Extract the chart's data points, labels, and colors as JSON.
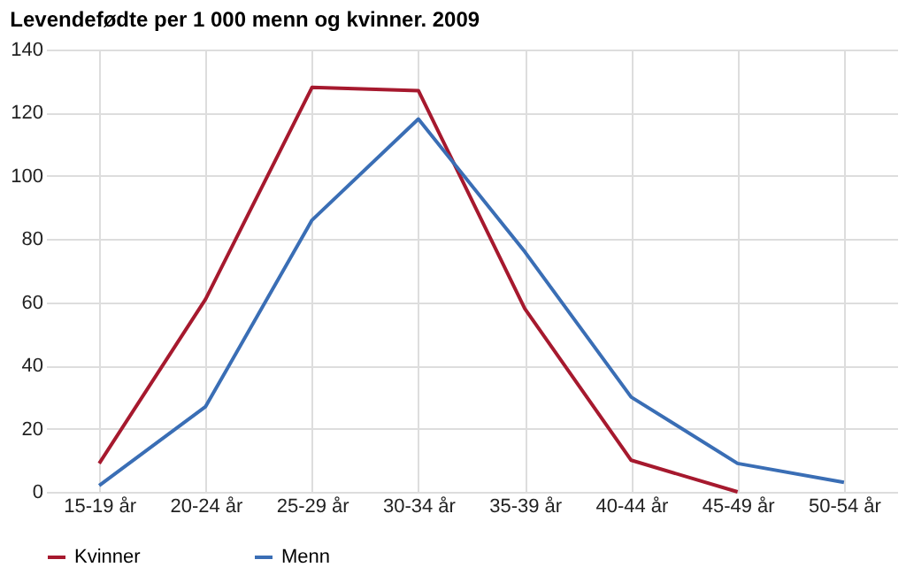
{
  "chart_data": {
    "type": "line",
    "title": "Levendefødte per 1 000 menn og kvinner. 2009",
    "categories": [
      "15-19 år",
      "20-24 år",
      "25-29 år",
      "30-34 år",
      "35-39 år",
      "40-44 år",
      "45-49 år",
      "50-54 år"
    ],
    "series": [
      {
        "name": "Kvinner",
        "color": "#a6192e",
        "values": [
          9,
          61,
          128,
          127,
          58,
          10,
          0,
          null
        ]
      },
      {
        "name": "Menn",
        "color": "#3a6eb5",
        "values": [
          2,
          27,
          86,
          118,
          76,
          30,
          9,
          3
        ]
      }
    ],
    "ylim": [
      0,
      140
    ],
    "yticks": [
      0,
      20,
      40,
      60,
      80,
      100,
      120,
      140
    ],
    "grid": true,
    "legend": "bottom",
    "marker": "none",
    "line_style": "solid"
  }
}
